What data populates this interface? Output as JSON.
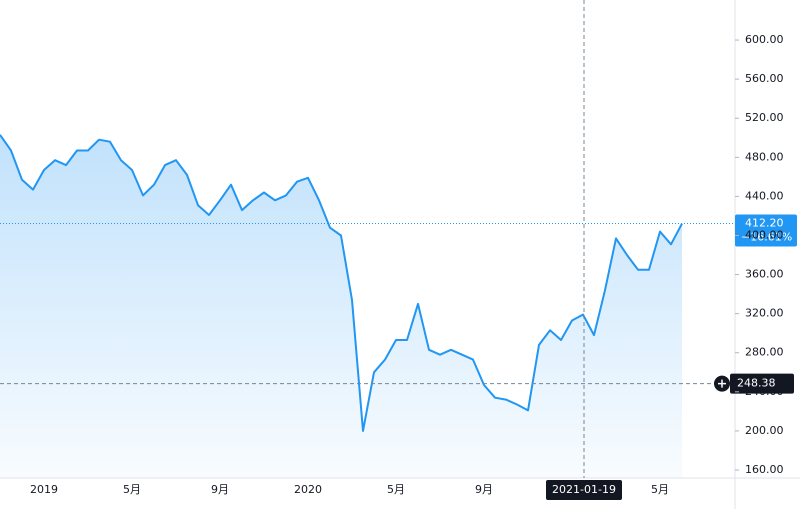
{
  "chart_data": {
    "type": "area",
    "color": "#2196f3",
    "grid": false,
    "categories": [
      null,
      null,
      null,
      null,
      "2019",
      null,
      null,
      null,
      null,
      null,
      null,
      null,
      "5月",
      null,
      null,
      null,
      null,
      null,
      null,
      null,
      "9月",
      null,
      null,
      null,
      null,
      null,
      null,
      null,
      "2020",
      null,
      null,
      null,
      null,
      null,
      null,
      null,
      "5月",
      null,
      null,
      null,
      null,
      null,
      null,
      null,
      "9月",
      null,
      null,
      null,
      null,
      null,
      null,
      null,
      null,
      null,
      null,
      null,
      null,
      null,
      null,
      null,
      "5月",
      null,
      null
    ],
    "values": [
      503,
      487,
      457,
      447,
      467,
      477,
      472,
      487,
      487,
      498,
      496,
      477,
      467,
      441,
      452,
      472,
      477,
      462,
      431,
      421,
      436,
      452,
      426,
      436,
      444,
      436,
      441,
      455,
      459,
      436,
      408,
      400,
      334,
      200,
      260,
      273,
      293,
      293,
      330,
      283,
      278,
      283,
      278,
      273,
      247,
      234,
      232,
      227,
      221,
      288,
      303,
      293,
      313,
      319,
      298,
      344,
      397,
      380,
      365,
      365,
      404,
      391,
      412.2
    ],
    "ylim": [
      151.8,
      641
    ],
    "yticks": [
      {
        "value": 160,
        "label": "160.00"
      },
      {
        "value": 200,
        "label": "200.00"
      },
      {
        "value": 240,
        "label": "240.00"
      },
      {
        "value": 280,
        "label": "280.00"
      },
      {
        "value": 320,
        "label": "320.00"
      },
      {
        "value": 360,
        "label": "360.00"
      },
      {
        "value": 400,
        "label": "400.00"
      },
      {
        "value": 440,
        "label": "440.00"
      },
      {
        "value": 480,
        "label": "480.00"
      },
      {
        "value": 520,
        "label": "520.00"
      },
      {
        "value": 560,
        "label": "560.00"
      },
      {
        "value": 600,
        "label": "600.00"
      }
    ],
    "last_price": {
      "value": 412.2,
      "label": "412.20"
    },
    "change": "−16.61%",
    "crosshair": {
      "date": "2021-01-19",
      "value": 248.38
    }
  }
}
